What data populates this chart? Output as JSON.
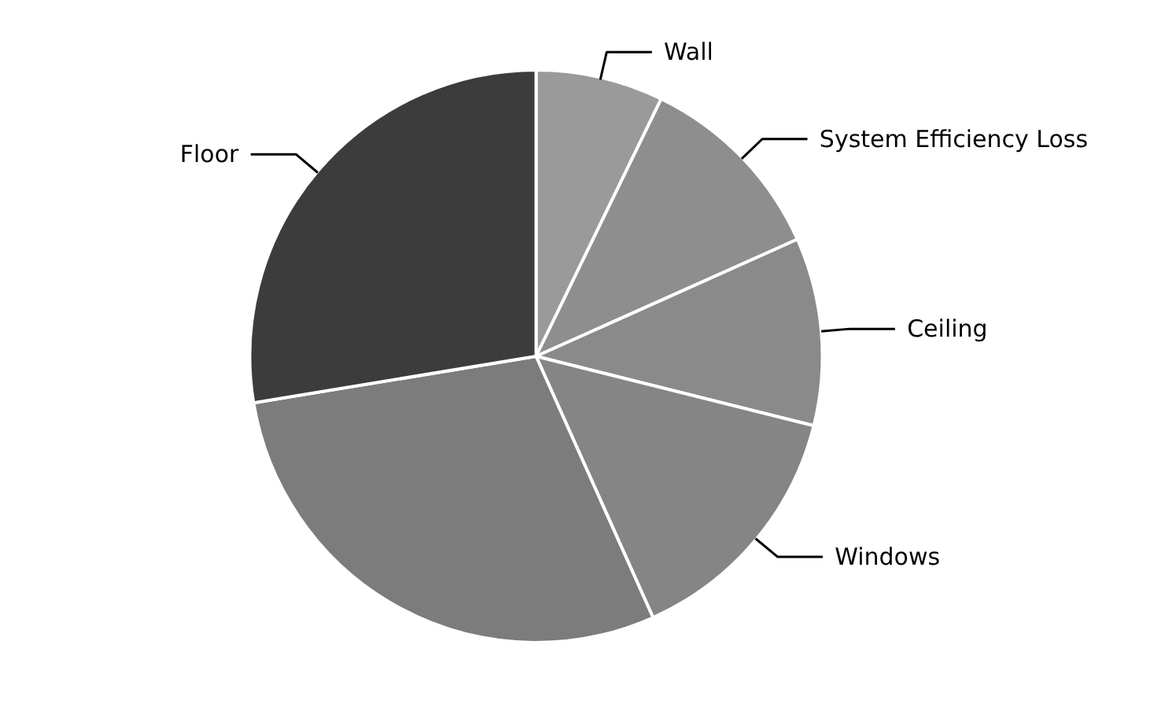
{
  "chart_data": {
    "type": "pie",
    "categories": [
      "Wall",
      "System Efficiency Loss",
      "Ceiling",
      "Windows",
      null,
      "Floor"
    ],
    "values": [
      7.2,
      11.1,
      10.6,
      14.4,
      29.1,
      27.6
    ],
    "colors": [
      "#9a9a9a",
      "#8e8e8e",
      "#8a8a8a",
      "#858585",
      "#7c7c7c",
      "#3c3c3c"
    ]
  }
}
